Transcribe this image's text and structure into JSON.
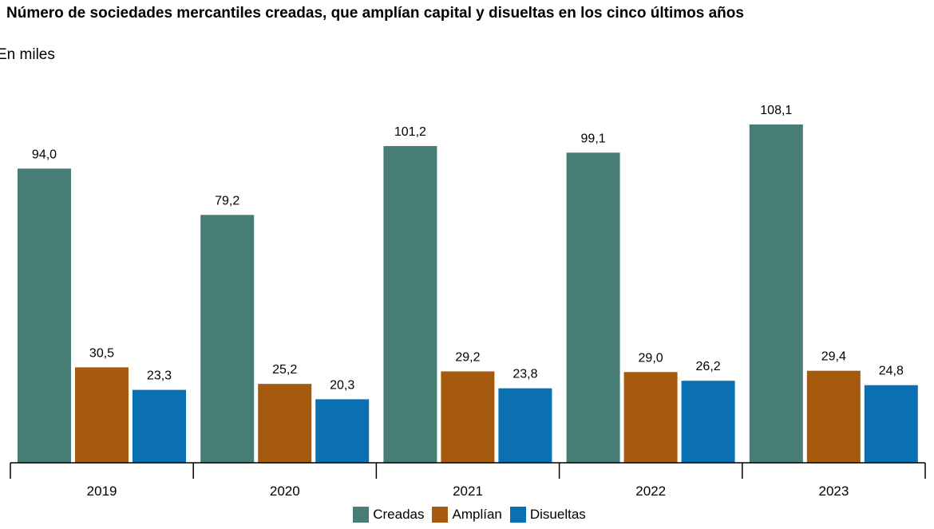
{
  "chart_data": {
    "type": "bar",
    "title": "Número de sociedades mercantiles creadas, que amplían capital y disueltas en los cinco últimos años",
    "subtitle": "En miles",
    "categories": [
      "2019",
      "2020",
      "2021",
      "2022",
      "2023"
    ],
    "series": [
      {
        "name": "Creadas",
        "color": "#467d74",
        "values": [
          94.0,
          79.2,
          101.2,
          99.1,
          108.1
        ],
        "labels": [
          "94,0",
          "79,2",
          "101,2",
          "99,1",
          "108,1"
        ]
      },
      {
        "name": "Amplían",
        "color": "#a65a0e",
        "values": [
          30.5,
          25.2,
          29.2,
          29.0,
          29.4
        ],
        "labels": [
          "30,5",
          "25,2",
          "29,2",
          "29,0",
          "29,4"
        ]
      },
      {
        "name": "Disueltas",
        "color": "#0a70b2",
        "values": [
          23.3,
          20.3,
          23.8,
          26.2,
          24.8
        ],
        "labels": [
          "23,3",
          "20,3",
          "23,8",
          "26,2",
          "24,8"
        ]
      }
    ],
    "ylim": [
      0,
      108.1
    ],
    "grid": false,
    "legend": "bottom-center"
  }
}
